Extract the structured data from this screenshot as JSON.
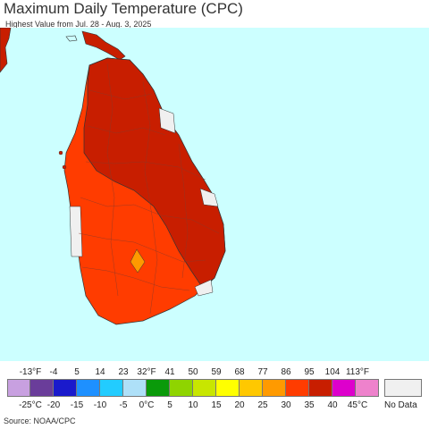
{
  "header": {
    "title": "Maximum Daily Temperature (CPC)",
    "subtitle": "Highest Value from Jul. 28 - Aug. 3, 2025"
  },
  "legend": {
    "fahrenheit_labels": [
      "-13°F",
      "-4",
      "5",
      "14",
      "23",
      "32°F",
      "41",
      "50",
      "59",
      "68",
      "77",
      "86",
      "95",
      "104",
      "113°F"
    ],
    "celsius_labels": [
      "-25°C",
      "-20",
      "-15",
      "-10",
      "-5",
      "0°C",
      "5",
      "10",
      "15",
      "20",
      "25",
      "30",
      "35",
      "40",
      "45°C"
    ],
    "colors": [
      "#c8a0e0",
      "#6a3d9a",
      "#1a1acc",
      "#1e90ff",
      "#22ccff",
      "#aee0f8",
      "#0a9a0a",
      "#8fd400",
      "#c8e600",
      "#ffff00",
      "#ffc800",
      "#ff9a00",
      "#ff3c00",
      "#c81e00",
      "#dd00cc",
      "#ee82cc"
    ],
    "no_data_label": "No Data",
    "no_data_color": "#f0f0f0"
  },
  "map": {
    "ocean_color": "#ccffff",
    "region_colors": {
      "north_and_east": "#c81e00",
      "southwest": "#ff3c00",
      "hill_spot": "#ff9a00",
      "no_data": "#f0f0f0"
    }
  },
  "footer": {
    "source": "Source: NOAA/CPC"
  }
}
